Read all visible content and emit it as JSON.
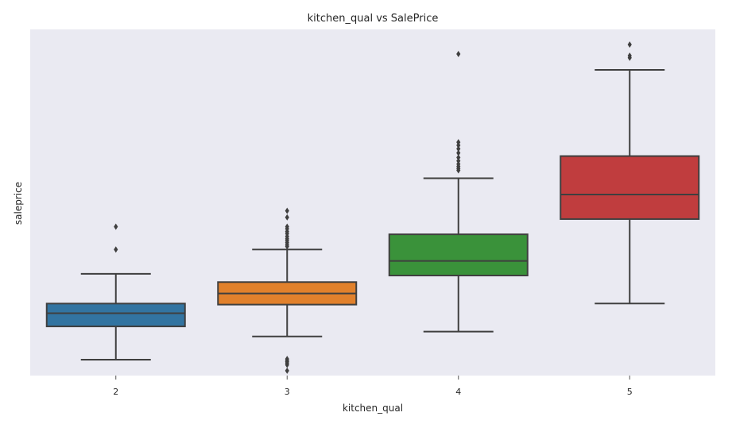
{
  "chart_data": {
    "type": "box",
    "title": "kitchen_qual vs SalePrice",
    "xlabel": "kitchen_qual",
    "ylabel": "saleprice",
    "categories": [
      "2",
      "3",
      "4",
      "5"
    ],
    "y_ticks_shown": false,
    "ylim": [
      0,
      100
    ],
    "grid": false,
    "background": "#eaeaf2",
    "boxes": [
      {
        "category": "2",
        "color": "#3274a1",
        "whisker_low": 4.6,
        "q1": 14.2,
        "median": 18.0,
        "q3": 20.8,
        "whisker_high": 29.4,
        "outliers": [
          36.4,
          43.0
        ]
      },
      {
        "category": "3",
        "color": "#e1812c",
        "whisker_low": 11.3,
        "q1": 20.5,
        "median": 23.7,
        "q3": 27.0,
        "whisker_high": 36.4,
        "outliers": [
          1.4,
          3.1,
          3.6,
          4.0,
          4.3,
          4.8,
          37.3,
          37.8,
          38.4,
          39.0,
          39.5,
          40.2,
          41.0,
          41.6,
          42.4,
          43.0,
          45.7,
          47.6
        ]
      },
      {
        "category": "4",
        "color": "#3a923a",
        "whisker_low": 12.7,
        "q1": 28.9,
        "median": 33.1,
        "q3": 40.8,
        "whisker_high": 57.0,
        "outliers": [
          59.3,
          59.8,
          60.4,
          61.1,
          62.0,
          63.0,
          64.3,
          65.5,
          66.5,
          67.4,
          92.9
        ]
      },
      {
        "category": "5",
        "color": "#c03d3e",
        "whisker_low": 20.8,
        "q1": 45.2,
        "median": 52.3,
        "q3": 63.4,
        "whisker_high": 88.3,
        "outliers": [
          91.8,
          92.4,
          95.6
        ]
      }
    ]
  }
}
